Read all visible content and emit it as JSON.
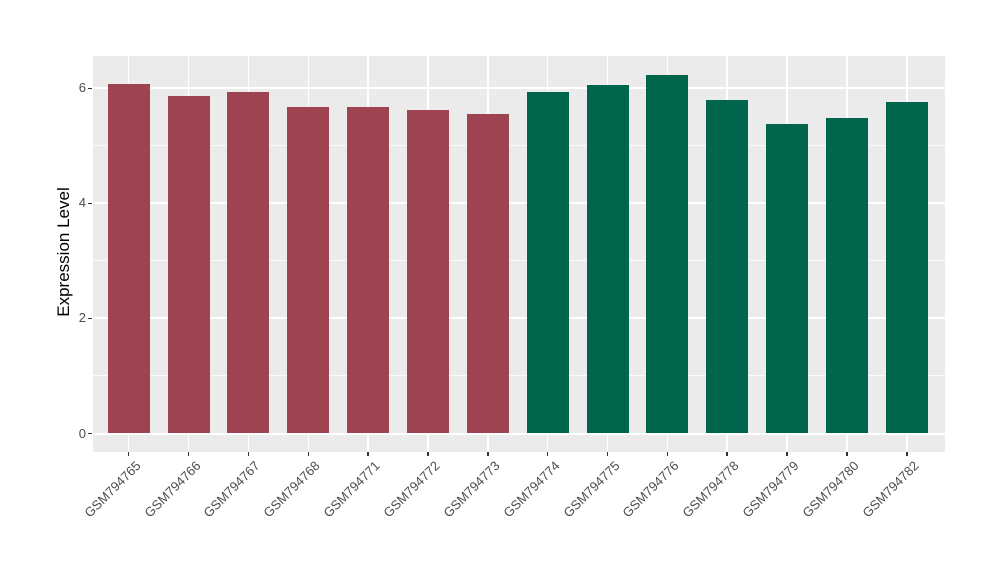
{
  "chart_data": {
    "type": "bar",
    "title": "",
    "xlabel": "",
    "ylabel": "Expression Level",
    "ylim": [
      -0.31,
      6.55
    ],
    "yticks": [
      0,
      2,
      4,
      6
    ],
    "minor_yticks": [
      1,
      3,
      5
    ],
    "grid": "gray panel with white major/minor gridlines, vertical major gridline at each category",
    "legend_position": "none",
    "categories": [
      "GSM794765",
      "GSM794766",
      "GSM794767",
      "GSM794768",
      "GSM794771",
      "GSM794772",
      "GSM794773",
      "GSM794774",
      "GSM794775",
      "GSM794776",
      "GSM794778",
      "GSM794779",
      "GSM794780",
      "GSM794782"
    ],
    "values": [
      6.08,
      5.87,
      5.94,
      5.68,
      5.68,
      5.63,
      5.55,
      5.94,
      6.06,
      6.24,
      5.8,
      5.38,
      5.48,
      5.76
    ],
    "bar_colors": [
      "#9E4352",
      "#9E4352",
      "#9E4352",
      "#9E4352",
      "#9E4352",
      "#9E4352",
      "#9E4352",
      "#00664B",
      "#00664B",
      "#00664B",
      "#00664B",
      "#00664B",
      "#00664B",
      "#00664B"
    ],
    "colors": {
      "group_red": "#9E4352",
      "group_green": "#00664B",
      "panel_background": "#EBEBEB",
      "gridline": "#FFFFFF",
      "axis_text": "#4D4D4D",
      "axis_title": "#000000",
      "tick_mark": "#333333",
      "figure_background": "#FFFFFF"
    }
  }
}
